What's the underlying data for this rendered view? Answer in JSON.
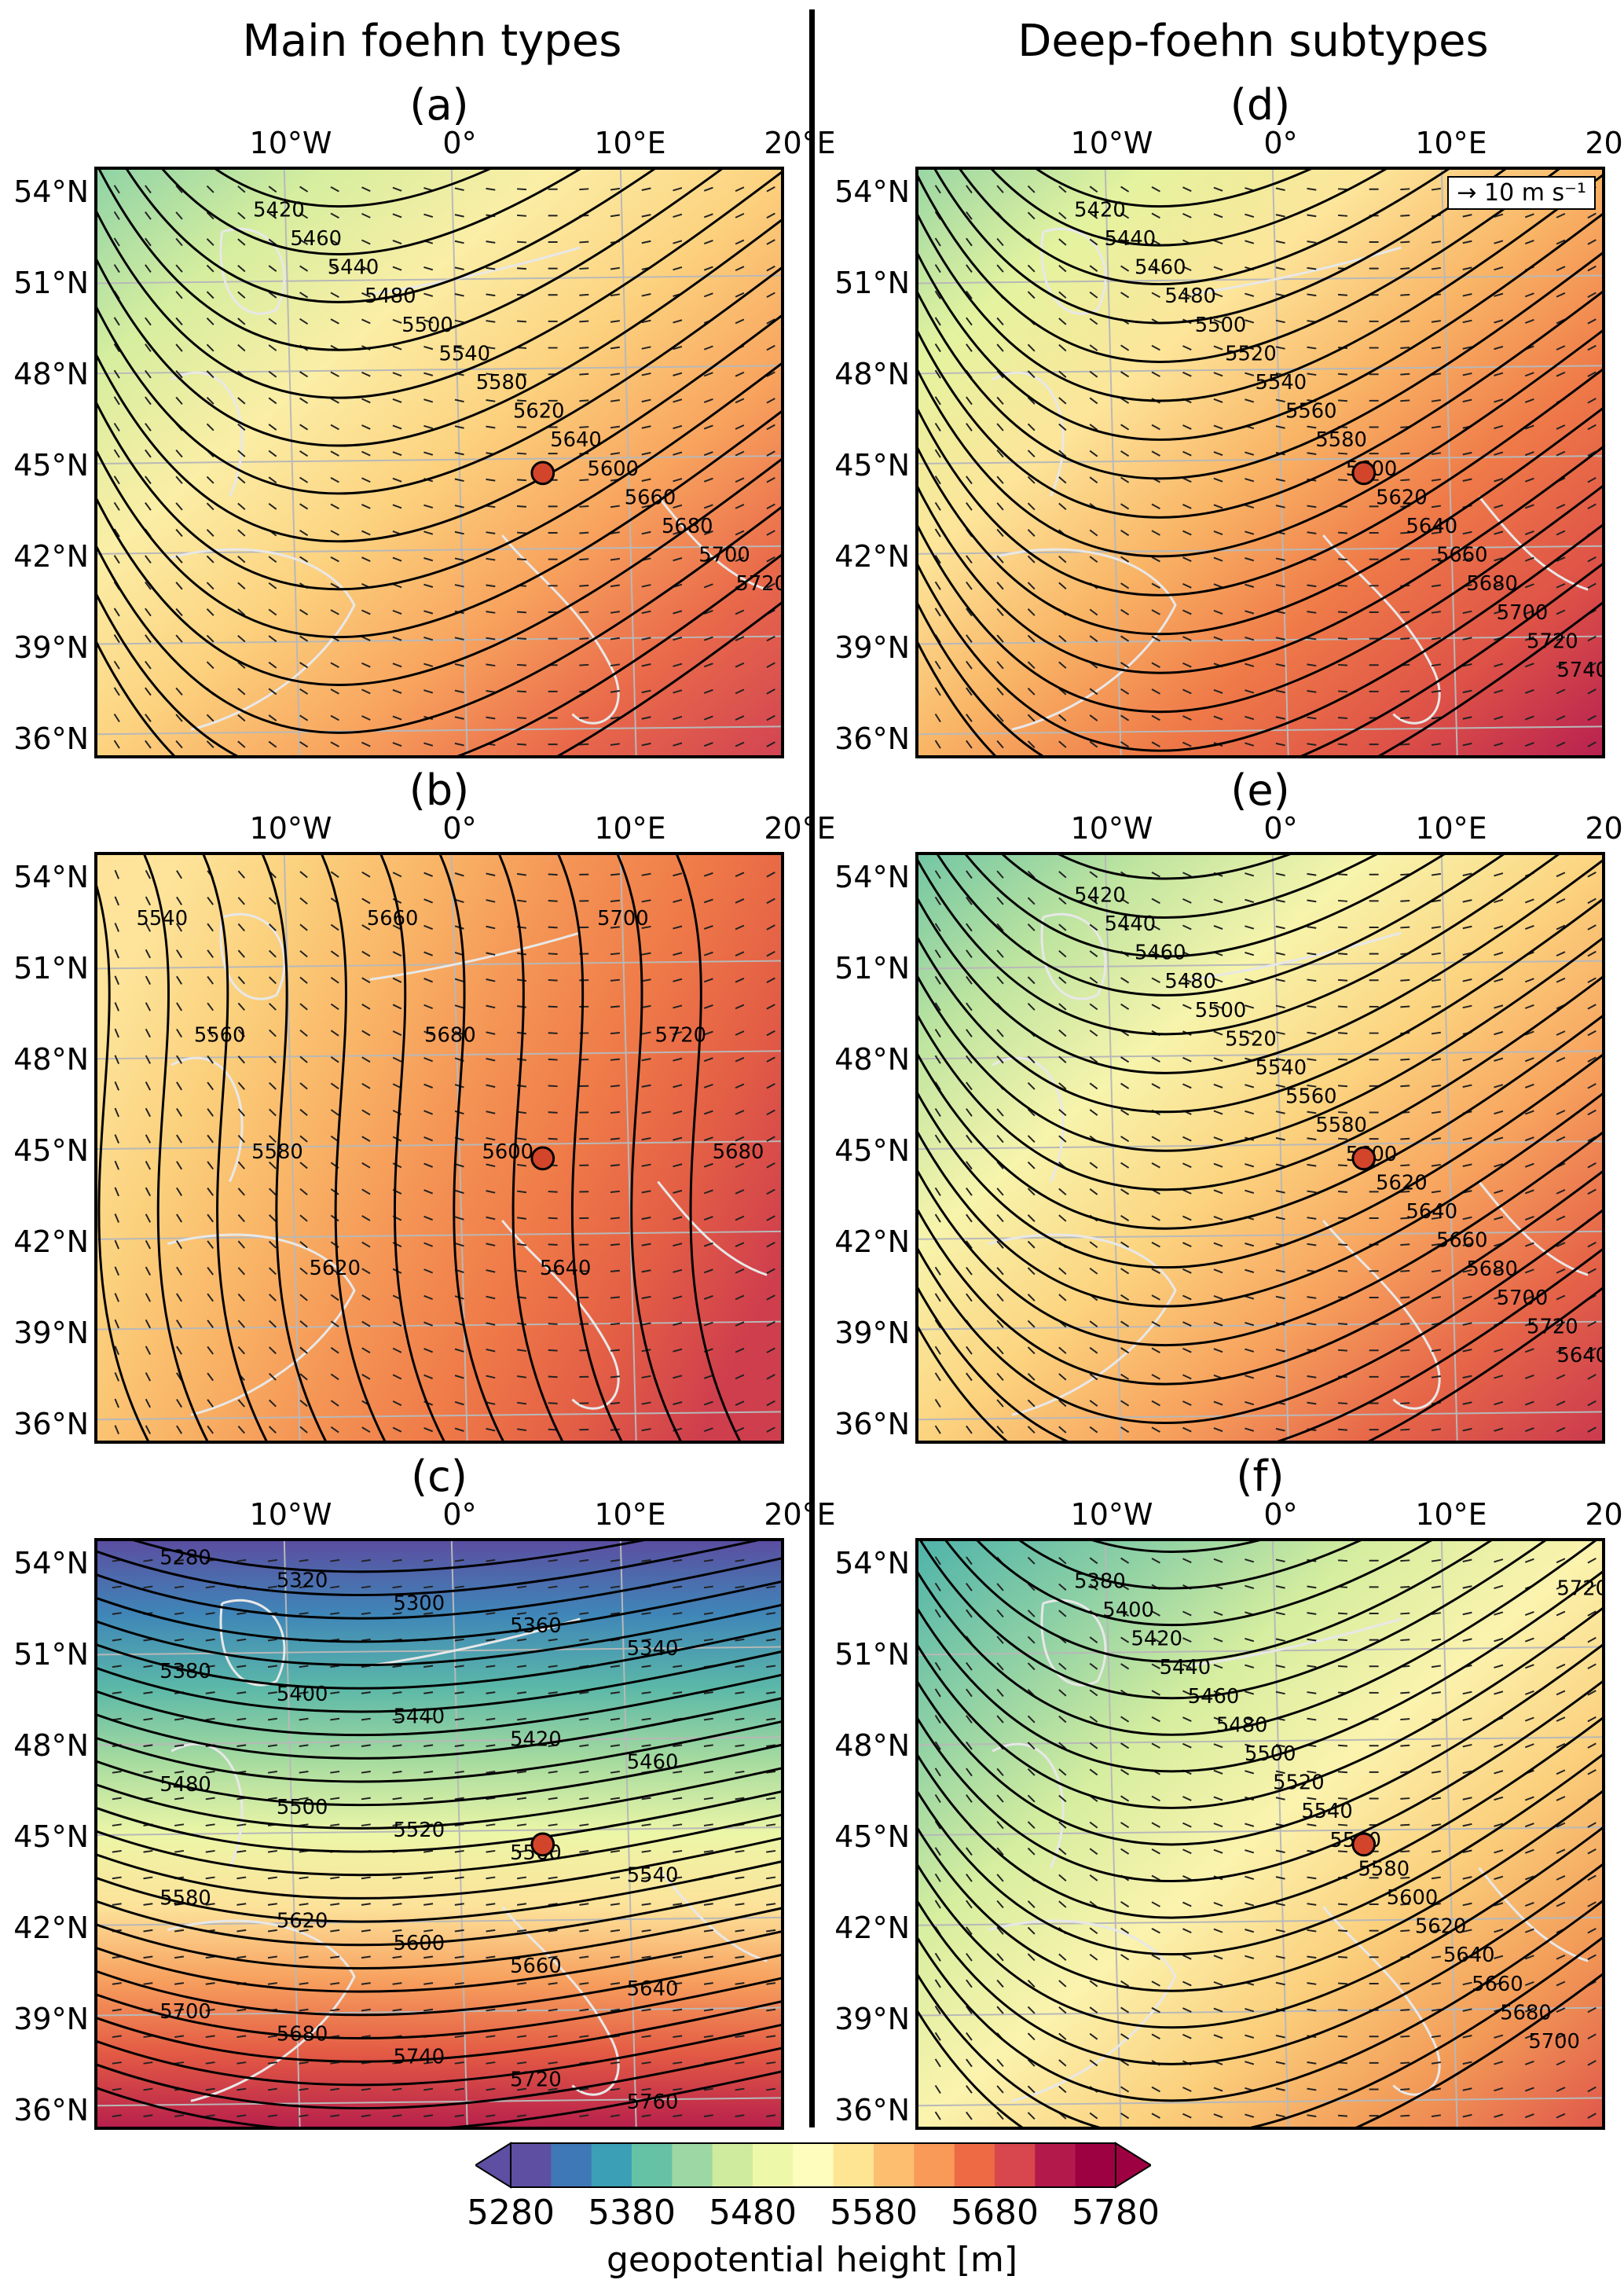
{
  "titles": {
    "left": "Main foehn types",
    "right": "Deep-foehn subtypes"
  },
  "longitude_labels": [
    "10°W",
    "0°",
    "10°E",
    "20°E"
  ],
  "latitude_labels": [
    "54°N",
    "51°N",
    "48°N",
    "45°N",
    "42°N",
    "39°N",
    "36°N"
  ],
  "wind_key": "10 m s⁻¹",
  "colorbar": {
    "title": "geopotential height [m]",
    "ticks": [
      "5280",
      "5380",
      "5480",
      "5580",
      "5680",
      "5780"
    ],
    "colors": [
      "#5e4fa2",
      "#3f78b6",
      "#3b9fb5",
      "#66c2a5",
      "#9cd7a4",
      "#cfeb9e",
      "#eef8a9",
      "#fefdbd",
      "#fee593",
      "#fdbf6f",
      "#fa9a58",
      "#ee6a44",
      "#d7474d",
      "#b3194b",
      "#9e0142"
    ]
  },
  "panels": [
    {
      "id": "a",
      "label": "(a)",
      "base_color": "#f5c078",
      "contours": [
        "5420",
        "5460",
        "5440",
        "5480",
        "5500",
        "5540",
        "5580",
        "5620",
        "5640",
        "5600",
        "5660",
        "5680",
        "5700",
        "5720"
      ]
    },
    {
      "id": "b",
      "label": "(b)",
      "base_color": "#f59a55",
      "contours": [
        "5540",
        "5560",
        "5580",
        "5620",
        "5660",
        "5680",
        "5600",
        "5640",
        "5700",
        "5720",
        "5680"
      ]
    },
    {
      "id": "c",
      "label": "(c)",
      "base_color": "#f3e89b",
      "contours": [
        "5280",
        "5320",
        "5300",
        "5360",
        "5340",
        "5380",
        "5400",
        "5440",
        "5420",
        "5460",
        "5480",
        "5500",
        "5520",
        "5560",
        "5540",
        "5580",
        "5620",
        "5600",
        "5660",
        "5640",
        "5700",
        "5680",
        "5740",
        "5720",
        "5760"
      ]
    },
    {
      "id": "d",
      "label": "(d)",
      "base_color": "#f5b06a",
      "contours": [
        "5420",
        "5440",
        "5460",
        "5480",
        "5500",
        "5520",
        "5540",
        "5560",
        "5580",
        "5600",
        "5620",
        "5640",
        "5660",
        "5680",
        "5700",
        "5720",
        "5740"
      ]
    },
    {
      "id": "e",
      "label": "(e)",
      "base_color": "#f3d58a",
      "contours": [
        "5420",
        "5440",
        "5460",
        "5480",
        "5500",
        "5520",
        "5540",
        "5560",
        "5580",
        "5600",
        "5620",
        "5640",
        "5660",
        "5680",
        "5700",
        "5720",
        "5640"
      ]
    },
    {
      "id": "f",
      "label": "(f)",
      "base_color": "#e9ea9c",
      "contours": [
        "5380",
        "5400",
        "5420",
        "5440",
        "5460",
        "5480",
        "5500",
        "5520",
        "5540",
        "5560",
        "5580",
        "5600",
        "5620",
        "5640",
        "5660",
        "5680",
        "5700",
        "5720"
      ]
    }
  ]
}
